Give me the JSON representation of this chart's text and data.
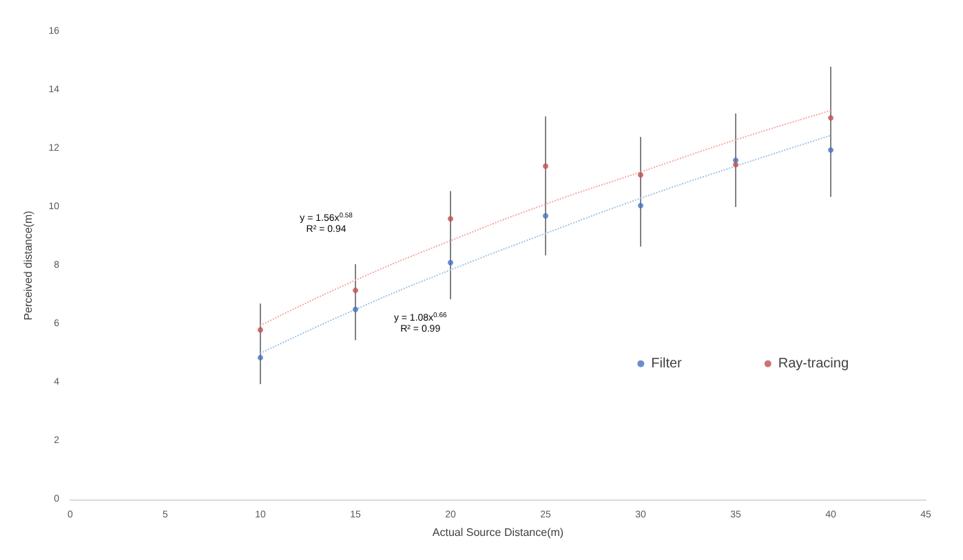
{
  "chart_data": {
    "type": "scatter",
    "xlabel": "Actual Source Distance(m)",
    "ylabel": "Perceived distance(m)",
    "x": [
      10,
      15,
      20,
      25,
      30,
      35,
      40
    ],
    "series": [
      {
        "name": "Filter",
        "color": "#4472c4",
        "values": [
          4.85,
          6.5,
          8.1,
          9.7,
          10.05,
          11.6,
          11.95
        ],
        "errors": [
          [
            3.95,
            6.7
          ],
          [
            5.45,
            8.05
          ],
          [
            6.85,
            10.55
          ],
          [
            8.35,
            13.1
          ],
          [
            8.65,
            12.4
          ],
          [
            10.0,
            13.2
          ],
          [
            10.35,
            14.8
          ]
        ]
      },
      {
        "name": "Ray-tracing",
        "color": "#c0504d",
        "values": [
          5.8,
          7.15,
          9.6,
          11.4,
          11.1,
          11.45,
          13.05
        ]
      },
      {
        "type": "line",
        "color": "#9dc3e6",
        "line_style": "dotted",
        "marker": "none",
        "values": [
          5.0,
          6.5,
          7.85,
          9.1,
          10.3,
          11.4,
          12.45
        ]
      },
      {
        "type": "line",
        "color": "#f4a6a6",
        "line_style": "dotted",
        "marker": "none",
        "values": [
          5.95,
          7.5,
          8.85,
          10.1,
          11.2,
          12.3,
          13.3
        ]
      }
    ],
    "annotations": [
      "y = 1.56x$^{0.58}$\nR² = 0.94",
      "y = 1.08x$^{0.66}$\nR² = 0.99"
    ],
    "xlim": [
      0,
      45
    ],
    "xticks": [
      0,
      5,
      10,
      15,
      20,
      25,
      30,
      35,
      40,
      45
    ],
    "ylim": [
      0,
      16
    ],
    "yticks": [
      0,
      2,
      4,
      6,
      8,
      10,
      12,
      14,
      16
    ],
    "marker": "circle",
    "legend": "right",
    "grid": false
  }
}
